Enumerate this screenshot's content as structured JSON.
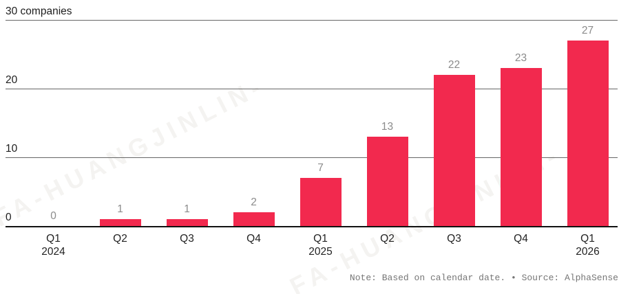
{
  "chart_data": {
    "type": "bar",
    "title": "30 companies",
    "categories": [
      {
        "quarter": "Q1",
        "year": "2024"
      },
      {
        "quarter": "Q2",
        "year": ""
      },
      {
        "quarter": "Q3",
        "year": ""
      },
      {
        "quarter": "Q4",
        "year": ""
      },
      {
        "quarter": "Q1",
        "year": "2025"
      },
      {
        "quarter": "Q2",
        "year": ""
      },
      {
        "quarter": "Q3",
        "year": ""
      },
      {
        "quarter": "Q4",
        "year": ""
      },
      {
        "quarter": "Q1",
        "year": "2026"
      }
    ],
    "values": [
      0,
      1,
      1,
      2,
      7,
      13,
      22,
      23,
      27
    ],
    "ylim": [
      0,
      30
    ],
    "yticks": [
      0,
      10,
      20,
      30
    ],
    "ytick_labels": [
      "0",
      "10",
      "20",
      "30 companies"
    ],
    "grid": true,
    "legend": "none",
    "colors": {
      "bar": "#f2294e",
      "gridline": "#666666",
      "axis": "#111111",
      "value_label": "#8b8b8b",
      "tick_label": "#222222",
      "note_text": "#767676"
    },
    "note": "Note: Based on calendar date. • Source: AlphaSense"
  },
  "watermark": {
    "text": "FA-HUANGJINLIN-"
  }
}
